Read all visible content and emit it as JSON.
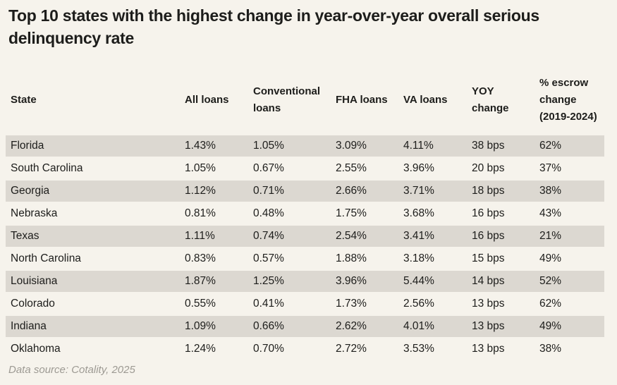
{
  "title": "Top 10 states with the highest change in year-over-year overall serious delinquency rate",
  "source": "Data source: Cotality, 2025",
  "row_shade_color": "#dcd8d1",
  "chart_data": {
    "type": "table",
    "columns": [
      "State",
      "All loans",
      "Conventional loans",
      "FHA loans",
      "VA loans",
      "YOY change",
      "% escrow change (2019-2024)"
    ],
    "rows": [
      [
        "Florida",
        "1.43%",
        "1.05%",
        "3.09%",
        "4.11%",
        "38 bps",
        "62%"
      ],
      [
        "South Carolina",
        "1.05%",
        "0.67%",
        "2.55%",
        "3.96%",
        "20 bps",
        "37%"
      ],
      [
        "Georgia",
        "1.12%",
        "0.71%",
        "2.66%",
        "3.71%",
        "18 bps",
        "38%"
      ],
      [
        "Nebraska",
        "0.81%",
        "0.48%",
        "1.75%",
        "3.68%",
        "16 bps",
        "43%"
      ],
      [
        "Texas",
        "1.11%",
        "0.74%",
        "2.54%",
        "3.41%",
        "16 bps",
        "21%"
      ],
      [
        "North Carolina",
        "0.83%",
        "0.57%",
        "1.88%",
        "3.18%",
        "15 bps",
        "49%"
      ],
      [
        "Louisiana",
        "1.87%",
        "1.25%",
        "3.96%",
        "5.44%",
        "14 bps",
        "52%"
      ],
      [
        "Colorado",
        "0.55%",
        "0.41%",
        "1.73%",
        "2.56%",
        "13 bps",
        "62%"
      ],
      [
        "Indiana",
        "1.09%",
        "0.66%",
        "2.62%",
        "4.01%",
        "13 bps",
        "49%"
      ],
      [
        "Oklahoma",
        "1.24%",
        "0.70%",
        "2.72%",
        "3.53%",
        "13 bps",
        "38%"
      ]
    ]
  }
}
